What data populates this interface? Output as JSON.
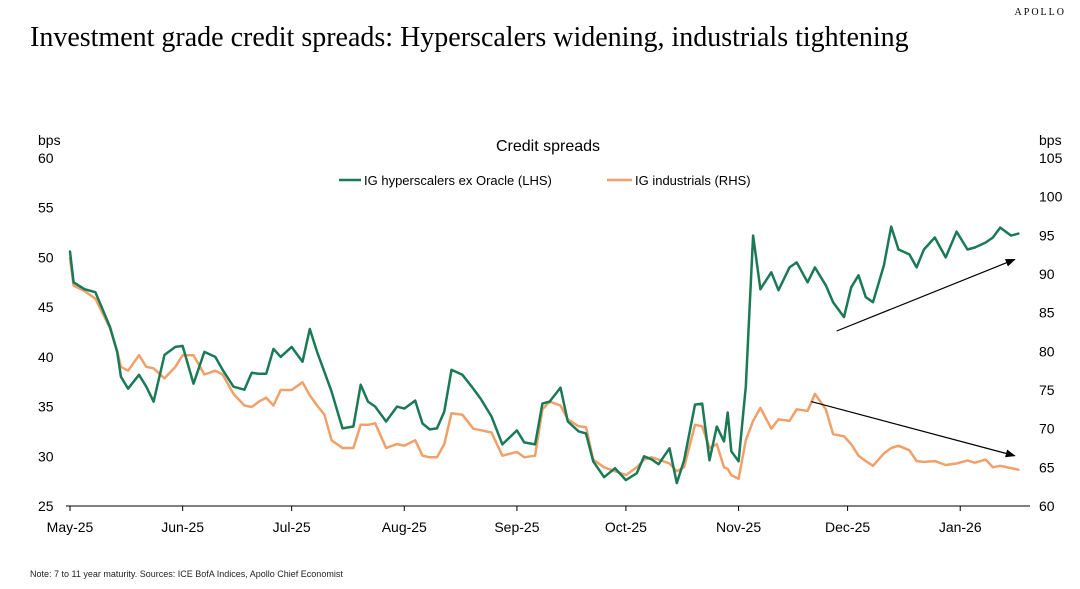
{
  "header": {
    "brand": "APOLLO",
    "title": "Investment grade credit spreads: Hyperscalers widening, industrials tightening"
  },
  "footer": {
    "note": "Note: 7 to 11 year maturity. Sources: ICE BofA Indices, Apollo Chief Economist"
  },
  "chart_data": {
    "type": "line",
    "title": "Credit spreads",
    "ylabel_left": "bps",
    "ylabel_right": "bps",
    "ylim_left": [
      25,
      60
    ],
    "ylim_right": [
      60,
      105
    ],
    "yticks_left": [
      "60",
      "55",
      "50",
      "45",
      "40",
      "35",
      "30",
      "25"
    ],
    "yticks_right": [
      "105",
      "100",
      "95",
      "90",
      "85",
      "80",
      "75",
      "70",
      "65",
      "60"
    ],
    "xticks": [
      "May-25",
      "Jun-25",
      "Jul-25",
      "Aug-25",
      "Sep-25",
      "Oct-25",
      "Nov-25",
      "Dec-25",
      "Jan-26"
    ],
    "x_start": "2025-05-01",
    "grid": false,
    "legend_position": "top-center",
    "series": [
      {
        "name": "IG hyperscalers ex Oracle (LHS)",
        "axis": "left",
        "color": "#1a7a55",
        "x": [
          "2025-05-01",
          "2025-05-02",
          "2025-05-05",
          "2025-05-08",
          "2025-05-12",
          "2025-05-14",
          "2025-05-15",
          "2025-05-17",
          "2025-05-20",
          "2025-05-22",
          "2025-05-24",
          "2025-05-27",
          "2025-05-30",
          "2025-06-01",
          "2025-06-04",
          "2025-06-07",
          "2025-06-10",
          "2025-06-12",
          "2025-06-15",
          "2025-06-18",
          "2025-06-20",
          "2025-06-22",
          "2025-06-24",
          "2025-06-26",
          "2025-06-28",
          "2025-07-01",
          "2025-07-04",
          "2025-07-06",
          "2025-07-08",
          "2025-07-10",
          "2025-07-12",
          "2025-07-15",
          "2025-07-18",
          "2025-07-20",
          "2025-07-22",
          "2025-07-24",
          "2025-07-27",
          "2025-07-30",
          "2025-08-01",
          "2025-08-04",
          "2025-08-06",
          "2025-08-08",
          "2025-08-10",
          "2025-08-12",
          "2025-08-14",
          "2025-08-17",
          "2025-08-20",
          "2025-08-22",
          "2025-08-25",
          "2025-08-28",
          "2025-09-01",
          "2025-09-03",
          "2025-09-06",
          "2025-09-08",
          "2025-09-10",
          "2025-09-13",
          "2025-09-15",
          "2025-09-18",
          "2025-09-20",
          "2025-09-22",
          "2025-09-25",
          "2025-09-28",
          "2025-10-01",
          "2025-10-04",
          "2025-10-06",
          "2025-10-08",
          "2025-10-10",
          "2025-10-13",
          "2025-10-15",
          "2025-10-17",
          "2025-10-20",
          "2025-10-22",
          "2025-10-24",
          "2025-10-26",
          "2025-10-28",
          "2025-10-29",
          "2025-10-30",
          "2025-11-01",
          "2025-11-03",
          "2025-11-05",
          "2025-11-07",
          "2025-11-10",
          "2025-11-12",
          "2025-11-15",
          "2025-11-17",
          "2025-11-20",
          "2025-11-22",
          "2025-11-25",
          "2025-11-27",
          "2025-11-30",
          "2025-12-02",
          "2025-12-04",
          "2025-12-06",
          "2025-12-08",
          "2025-12-11",
          "2025-12-13",
          "2025-12-15",
          "2025-12-18",
          "2025-12-20",
          "2025-12-22",
          "2025-12-25",
          "2025-12-28",
          "2025-12-31",
          "2026-01-03",
          "2026-01-05",
          "2026-01-08",
          "2026-01-10",
          "2026-01-12",
          "2026-01-15",
          "2026-01-17"
        ],
        "values": [
          50.6,
          47.5,
          46.8,
          46.5,
          43.0,
          40.5,
          38.0,
          36.8,
          38.2,
          37.0,
          35.5,
          40.2,
          41.0,
          41.1,
          37.3,
          40.5,
          40.0,
          38.7,
          37.0,
          36.7,
          38.4,
          38.3,
          38.3,
          40.8,
          40.0,
          41.0,
          39.5,
          42.8,
          40.5,
          38.5,
          36.5,
          32.8,
          33.0,
          37.2,
          35.5,
          35.0,
          33.5,
          35.0,
          34.8,
          35.6,
          33.3,
          32.7,
          32.8,
          34.5,
          38.7,
          38.2,
          36.8,
          35.8,
          34.0,
          31.2,
          32.6,
          31.4,
          31.2,
          35.3,
          35.5,
          36.9,
          33.5,
          32.5,
          32.3,
          29.5,
          27.9,
          28.8,
          27.6,
          28.3,
          30.0,
          29.7,
          29.2,
          30.8,
          27.3,
          29.6,
          35.2,
          35.3,
          29.6,
          33.0,
          31.5,
          34.4,
          30.5,
          29.5,
          37.0,
          52.2,
          46.8,
          48.5,
          46.7,
          49.0,
          49.5,
          47.5,
          49.0,
          47.2,
          45.5,
          44.0,
          47.0,
          48.2,
          46.0,
          45.5,
          49.2,
          53.1,
          50.8,
          50.3,
          49.0,
          50.8,
          52.0,
          50.0,
          52.6,
          50.8,
          51.0,
          51.5,
          52.0,
          53.0,
          52.2,
          52.4
        ]
      },
      {
        "name": "IG industrials (RHS)",
        "axis": "right",
        "color": "#f0a06a",
        "x": [
          "2025-05-01",
          "2025-05-02",
          "2025-05-05",
          "2025-05-08",
          "2025-05-12",
          "2025-05-14",
          "2025-05-15",
          "2025-05-17",
          "2025-05-20",
          "2025-05-22",
          "2025-05-24",
          "2025-05-27",
          "2025-05-30",
          "2025-06-01",
          "2025-06-04",
          "2025-06-07",
          "2025-06-10",
          "2025-06-12",
          "2025-06-15",
          "2025-06-18",
          "2025-06-20",
          "2025-06-22",
          "2025-06-24",
          "2025-06-26",
          "2025-06-28",
          "2025-07-01",
          "2025-07-04",
          "2025-07-06",
          "2025-07-08",
          "2025-07-10",
          "2025-07-12",
          "2025-07-15",
          "2025-07-18",
          "2025-07-20",
          "2025-07-22",
          "2025-07-24",
          "2025-07-27",
          "2025-07-30",
          "2025-08-01",
          "2025-08-04",
          "2025-08-06",
          "2025-08-08",
          "2025-08-10",
          "2025-08-12",
          "2025-08-14",
          "2025-08-17",
          "2025-08-20",
          "2025-08-22",
          "2025-08-25",
          "2025-08-28",
          "2025-09-01",
          "2025-09-03",
          "2025-09-06",
          "2025-09-08",
          "2025-09-10",
          "2025-09-13",
          "2025-09-15",
          "2025-09-18",
          "2025-09-20",
          "2025-09-22",
          "2025-09-25",
          "2025-09-28",
          "2025-10-01",
          "2025-10-04",
          "2025-10-06",
          "2025-10-08",
          "2025-10-10",
          "2025-10-13",
          "2025-10-15",
          "2025-10-17",
          "2025-10-20",
          "2025-10-22",
          "2025-10-24",
          "2025-10-26",
          "2025-10-28",
          "2025-10-29",
          "2025-10-30",
          "2025-11-01",
          "2025-11-03",
          "2025-11-05",
          "2025-11-07",
          "2025-11-10",
          "2025-11-12",
          "2025-11-15",
          "2025-11-17",
          "2025-11-20",
          "2025-11-22",
          "2025-11-25",
          "2025-11-27",
          "2025-11-30",
          "2025-12-02",
          "2025-12-04",
          "2025-12-06",
          "2025-12-08",
          "2025-12-11",
          "2025-12-13",
          "2025-12-15",
          "2025-12-18",
          "2025-12-20",
          "2025-12-22",
          "2025-12-25",
          "2025-12-28",
          "2025-12-31",
          "2026-01-03",
          "2026-01-05",
          "2026-01-08",
          "2026-01-10",
          "2026-01-12",
          "2026-01-15",
          "2026-01-17"
        ],
        "values": [
          92.0,
          88.5,
          87.8,
          86.8,
          83.0,
          80.0,
          78.0,
          77.5,
          79.5,
          78.0,
          77.8,
          76.5,
          78.0,
          79.5,
          79.5,
          77.0,
          77.5,
          77.0,
          74.5,
          73.0,
          72.8,
          73.5,
          74.0,
          73.0,
          75.0,
          75.0,
          76.0,
          74.3,
          73.0,
          71.8,
          68.5,
          67.5,
          67.5,
          70.5,
          70.5,
          70.7,
          67.5,
          68.0,
          67.8,
          68.5,
          66.5,
          66.3,
          66.3,
          68.0,
          72.0,
          71.8,
          70.0,
          69.8,
          69.5,
          66.5,
          67.0,
          66.3,
          66.5,
          72.5,
          73.5,
          73.0,
          71.2,
          70.3,
          70.2,
          66.0,
          65.0,
          64.5,
          64.0,
          65.0,
          66.0,
          66.3,
          66.0,
          65.5,
          64.5,
          65.0,
          70.5,
          70.3,
          67.5,
          68.0,
          65.0,
          64.8,
          64.0,
          63.5,
          68.5,
          71.0,
          72.7,
          70.0,
          71.2,
          71.0,
          72.5,
          72.3,
          74.5,
          72.5,
          69.3,
          69.0,
          68.0,
          66.5,
          65.8,
          65.2,
          66.8,
          67.5,
          67.8,
          67.2,
          65.8,
          65.7,
          65.8,
          65.3,
          65.5,
          65.9,
          65.6,
          66.0,
          65.0,
          65.2,
          64.9,
          64.7
        ]
      }
    ],
    "annotations": [
      {
        "type": "arrow",
        "axis": "left",
        "from": [
          "2025-11-28",
          42.6
        ],
        "to": [
          "2026-01-16",
          49.8
        ]
      },
      {
        "type": "arrow",
        "axis": "right",
        "from": [
          "2025-11-21",
          73.5
        ],
        "to": [
          "2026-01-16",
          66.5
        ]
      }
    ]
  }
}
